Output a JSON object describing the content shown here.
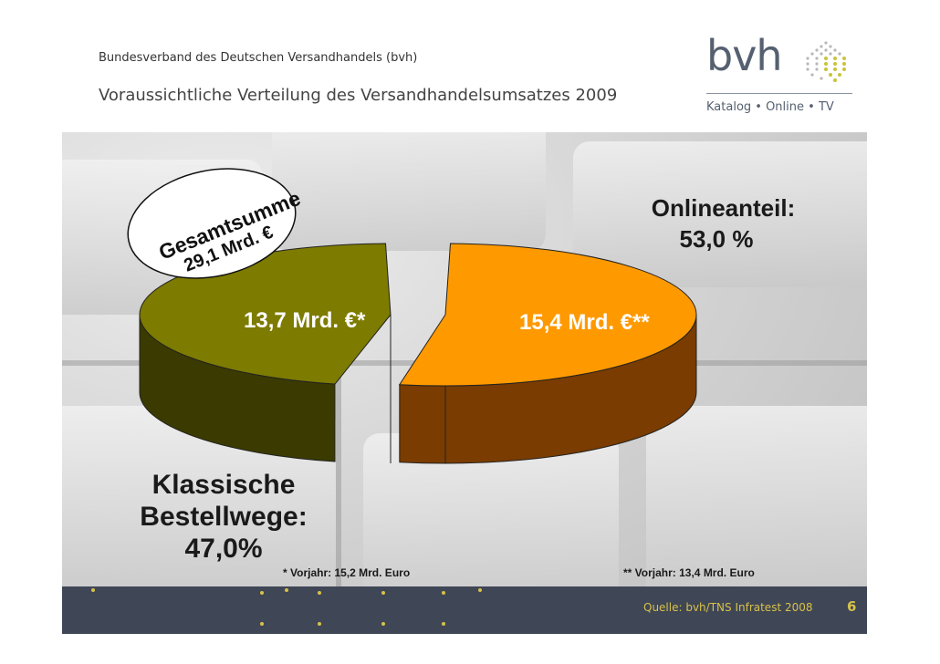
{
  "header": {
    "organization": "Bundesverband des Deutschen Versandhandels (bvh)",
    "title": "Voraussichtliche Verteilung des Versandhandelsumsatzes 2009"
  },
  "logo": {
    "wordmark": "bvh",
    "tagline": "Katalog • Online • TV"
  },
  "chart_data": {
    "type": "pie",
    "title": "",
    "total_label_line1": "Gesamtsumme",
    "total_label_line2": "29,1 Mrd. €",
    "slices": [
      {
        "name": "Klassische Bestellwege",
        "value": 13.7,
        "percent": 47.0,
        "value_label": "13,7 Mrd. €*",
        "color": "#7d7b00",
        "side_color": "#3b3a00"
      },
      {
        "name": "Onlineanteil",
        "value": 15.4,
        "percent": 53.0,
        "value_label": "15,4 Mrd. €**",
        "color": "#ff9900",
        "side_color": "#7a3c00"
      }
    ],
    "annotations": {
      "online_title": "Onlineanteil:",
      "online_percent": "53,0 %",
      "classic_line1": "Klassische",
      "classic_line2": "Bestellwege:",
      "classic_line3": "47,0%",
      "note_left": "* Vorjahr: 15,2 Mrd. Euro",
      "note_right": "** Vorjahr: 13,4 Mrd. Euro"
    }
  },
  "footer": {
    "source": "Quelle: bvh/TNS Infratest 2008",
    "page_number": "6"
  },
  "colors": {
    "accent": "#d8c14a",
    "footer_bar": "#3f4655",
    "logo": "#556070"
  }
}
